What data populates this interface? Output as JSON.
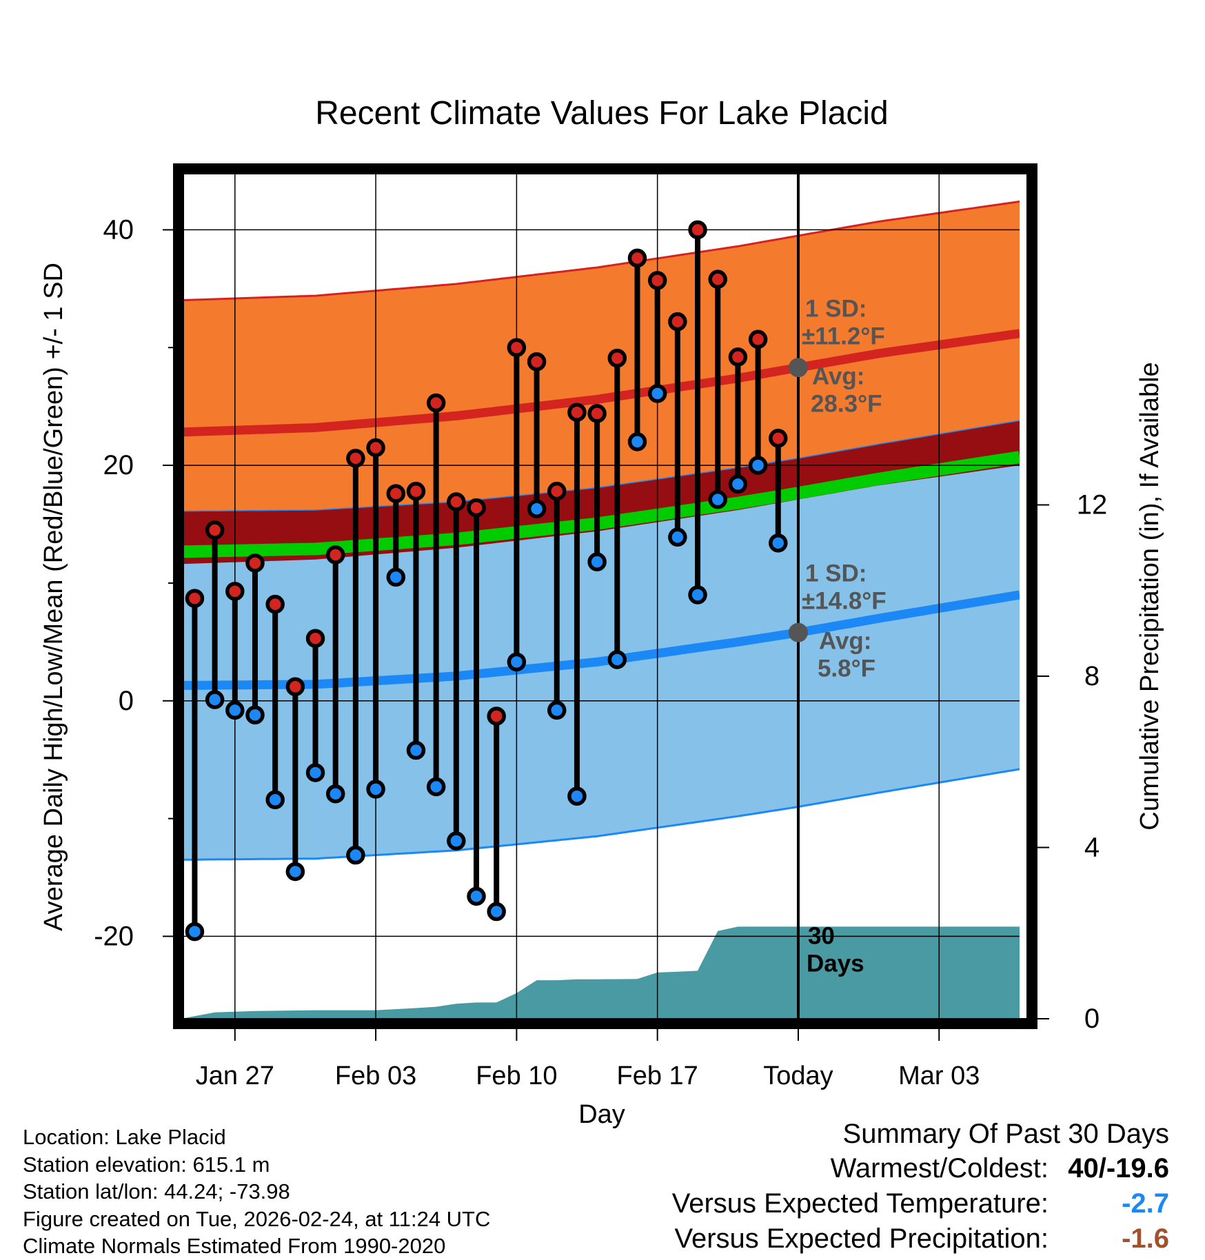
{
  "colors": {
    "high_band": "#f47a2e",
    "high_edge": "#d42420",
    "low_band": "#85c1e9",
    "low_edge": "#1c88f5",
    "overlap": "#960d12",
    "mean": "#00cc00",
    "precip": "#4a9aa3",
    "high_dot": "#d42420",
    "low_dot": "#1c88f5",
    "annotation": "#555555",
    "cold_value": "#1c88f5",
    "dry_value": "#a0522d"
  },
  "chart_data": {
    "type": "line",
    "title": "Recent Climate Values For Lake Placid",
    "xlabel": "Day",
    "ylabel_left": "Average Daily High/Low/Mean (Red/Blue/Green) +/- 1 SD",
    "ylabel_right": "Cumulative Precipitation (in), If Available",
    "x_range": [
      -30.7,
      11
    ],
    "ylim_left": [
      -27,
      45
    ],
    "ylim_right": [
      0,
      19.8
    ],
    "left_ticks": [
      "40",
      "20",
      "0",
      "-20"
    ],
    "left_tick_values": [
      40,
      20,
      0,
      -20
    ],
    "left_minor_values": [
      30,
      10,
      -10
    ],
    "right_ticks": [
      "12",
      "8",
      "4",
      "0"
    ],
    "right_tick_values": [
      12,
      8,
      4,
      0
    ],
    "x_ticks": [
      "Jan 27",
      "Feb 03",
      "Feb 10",
      "Feb 17",
      "Today",
      "Mar 03"
    ],
    "x_tick_days": [
      -28,
      -21,
      -14,
      -7,
      0,
      7
    ],
    "normals": {
      "days": [
        -31,
        -24,
        -17,
        -10,
        -3,
        0,
        4,
        11
      ],
      "high_mean": [
        22.8,
        23.2,
        24.2,
        25.6,
        27.4,
        28.3,
        29.5,
        31.2
      ],
      "high_sd": 11.2,
      "low_mean": [
        1.3,
        1.4,
        2.1,
        3.3,
        5.0,
        5.8,
        7.0,
        9.0
      ],
      "low_sd": 14.8
    },
    "series": [
      {
        "name": "High",
        "days": [
          -30,
          -29,
          -28,
          -27,
          -26,
          -25,
          -24,
          -23,
          -22,
          -21,
          -20,
          -19,
          -18,
          -17,
          -16,
          -15,
          -14,
          -13,
          -12,
          -11,
          -10,
          -9,
          -8,
          -7,
          -6,
          -5,
          -4,
          -3,
          -2,
          -1
        ],
        "values": [
          8.7,
          14.5,
          9.3,
          11.7,
          8.2,
          1.2,
          5.3,
          12.4,
          20.6,
          21.5,
          17.6,
          17.8,
          25.3,
          16.9,
          16.4,
          -1.3,
          30.0,
          28.8,
          17.8,
          24.5,
          24.4,
          29.1,
          37.6,
          35.7,
          32.2,
          40.0,
          35.8,
          29.2,
          30.7,
          22.3
        ]
      },
      {
        "name": "Low",
        "days": [
          -30,
          -29,
          -28,
          -27,
          -26,
          -25,
          -24,
          -23,
          -22,
          -21,
          -20,
          -19,
          -18,
          -17,
          -16,
          -15,
          -14,
          -13,
          -12,
          -11,
          -10,
          -9,
          -8,
          -7,
          -6,
          -5,
          -4,
          -3,
          -2,
          -1
        ],
        "values": [
          -19.6,
          0.1,
          -0.8,
          -1.2,
          -8.4,
          -14.5,
          -6.1,
          -7.9,
          -13.1,
          -7.5,
          10.5,
          -4.2,
          -7.3,
          -11.9,
          -16.6,
          -17.9,
          3.3,
          16.3,
          -0.8,
          -8.1,
          11.8,
          3.5,
          22.0,
          26.1,
          13.9,
          9.0,
          17.1,
          18.4,
          20.0,
          13.4
        ]
      },
      {
        "name": "Cumulative Precipitation",
        "days": [
          -30.7,
          -29,
          -27,
          -24,
          -21,
          -19,
          -18,
          -17,
          -16,
          -15,
          -14,
          -13,
          -12,
          -11,
          -10,
          -8,
          -7,
          -6,
          -5,
          -4,
          -3,
          -2,
          0,
          11
        ],
        "values": [
          0,
          0.15,
          0.18,
          0.2,
          0.2,
          0.25,
          0.28,
          0.35,
          0.38,
          0.38,
          0.6,
          0.9,
          0.9,
          0.92,
          0.92,
          0.93,
          1.08,
          1.1,
          1.12,
          2.05,
          2.15,
          2.15,
          2.15,
          2.15
        ]
      }
    ],
    "annotations": {
      "high_sd_line1": "1 SD:",
      "high_sd_line2": "±11.2°F",
      "high_avg_line1": "Avg:",
      "high_avg_line2": "28.3°F",
      "high_avg_value": 28.3,
      "low_sd_line1": "1 SD:",
      "low_sd_line2": "±14.8°F",
      "low_avg_line1": "Avg:",
      "low_avg_line2": "5.8°F",
      "low_avg_value": 5.8,
      "precip_line1": "30",
      "precip_line2": "Days"
    }
  },
  "info": {
    "location": "Location: Lake Placid",
    "elevation": "Station elevation: 615.1 m",
    "latlon": "Station lat/lon: 44.24; -73.98",
    "created": "Figure created on Tue, 2026-02-24, at 11:24 UTC",
    "normals": "Climate Normals Estimated From 1990-2020"
  },
  "summary": {
    "heading": "Summary Of Past 30 Days",
    "warmest_label": "Warmest/Coldest:",
    "warmest_value": "40/-19.6",
    "temp_label": "Versus Expected Temperature:",
    "temp_value": "-2.7",
    "precip_label": "Versus Expected Precipitation:",
    "precip_value": "-1.6"
  }
}
